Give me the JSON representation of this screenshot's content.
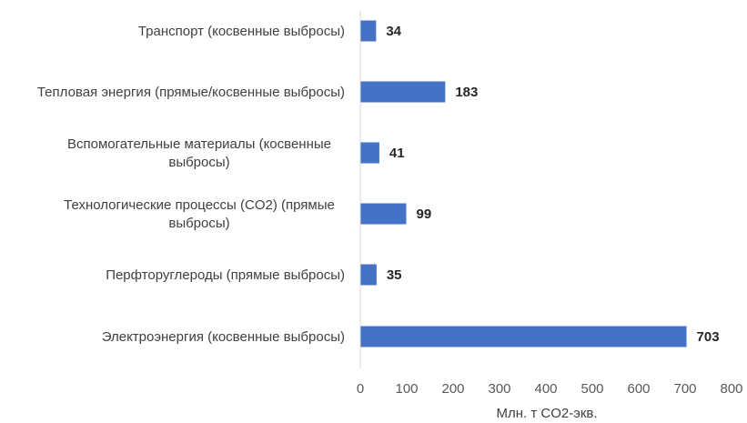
{
  "chart_data": {
    "type": "bar",
    "orientation": "horizontal",
    "categories": [
      [
        "Транспорт (косвенные выбросы)"
      ],
      [
        "Тепловая энергия (прямые/косвенные выбросы)"
      ],
      [
        "Вспомогательные материалы (косвенные",
        "выбросы)"
      ],
      [
        "Технологические процессы (CO2) (прямые",
        "выбросы)"
      ],
      [
        "Перфторуглероды (прямые выбросы)"
      ],
      [
        "Электроэнергия (косвенные выбросы)"
      ]
    ],
    "values": [
      34,
      183,
      41,
      99,
      35,
      703
    ],
    "data_labels": [
      "34",
      "183",
      "41",
      "99",
      "35",
      "703"
    ],
    "xlim": [
      0,
      800
    ],
    "xticks": [
      0,
      100,
      200,
      300,
      400,
      500,
      600,
      700,
      800
    ],
    "xlabel": "Млн. т CO2-экв.",
    "ylabel": "",
    "title": "",
    "bar_color": "#4472c4",
    "axis_color": "#d9d9d9",
    "grid": false,
    "legend": "none"
  }
}
